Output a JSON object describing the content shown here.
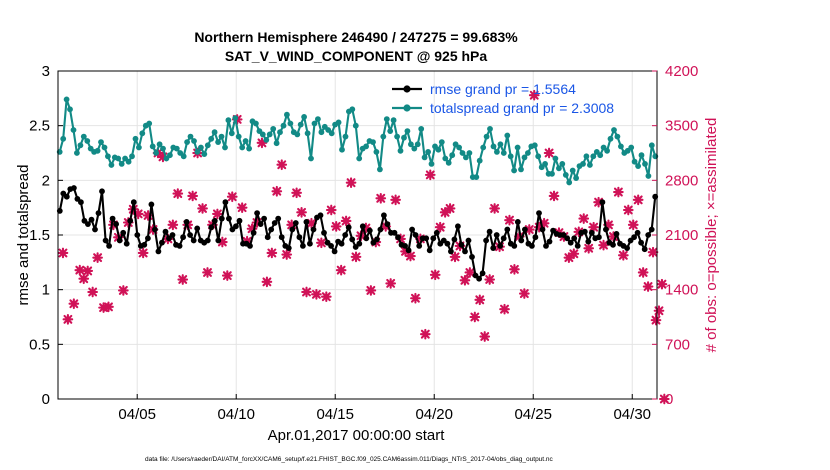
{
  "chart_data": {
    "type": "line",
    "title": "Northern Hemisphere 246490 / 247275 = 99.683%",
    "subtitle": "SAT_V_WIND_COMPONENT @ 925 hPa",
    "xlabel": "Apr.01,2017 00:00:00 start",
    "ylabel_left": "rmse and totalspread",
    "ylabel_right": "# of obs: o=possible; ×=assimilated",
    "footer": "data file: /Users/raeder/DAI/ATM_forcXX/CAM6_setup/f.e21.FHIST_BGC.f09_025.CAM6assim.011/Diags_NTrS_2017-04/obs_diag_output.nc",
    "x_range_days": [
      0,
      30.25
    ],
    "x_ticks": [
      {
        "day": 4,
        "label": "04/05"
      },
      {
        "day": 9,
        "label": "04/10"
      },
      {
        "day": 14,
        "label": "04/15"
      },
      {
        "day": 19,
        "label": "04/20"
      },
      {
        "day": 24,
        "label": "04/25"
      },
      {
        "day": 29,
        "label": "04/30"
      }
    ],
    "ylim_left": [
      0,
      3
    ],
    "left_ticks": [
      "0",
      "0.5",
      "1",
      "1.5",
      "2",
      "2.5",
      "3"
    ],
    "ylim_right": [
      0,
      4200
    ],
    "right_ticks": [
      "0",
      "700",
      "1400",
      "2100",
      "2800",
      "3500",
      "4200"
    ],
    "grid": true,
    "legend_position": "top-right",
    "series": [
      {
        "name": "rmse grand pr = 1.5564",
        "axis": "left",
        "color": "#000000",
        "values": [
          1.72,
          1.88,
          1.85,
          1.92,
          1.93,
          1.83,
          1.8,
          1.63,
          1.6,
          1.64,
          1.55,
          1.7,
          1.9,
          1.45,
          1.4,
          1.65,
          1.6,
          1.45,
          1.52,
          1.42,
          1.63,
          1.8,
          1.5,
          1.4,
          1.41,
          1.47,
          1.78,
          1.55,
          1.35,
          1.43,
          1.53,
          1.47,
          1.5,
          1.41,
          1.4,
          1.48,
          1.62,
          1.5,
          1.45,
          1.56,
          1.45,
          1.43,
          1.45,
          1.57,
          1.63,
          1.45,
          1.65,
          1.8,
          1.65,
          1.55,
          1.58,
          1.63,
          1.42,
          1.42,
          1.4,
          1.52,
          1.7,
          1.6,
          1.65,
          1.48,
          1.55,
          1.61,
          1.65,
          1.48,
          1.4,
          1.38,
          1.55,
          1.61,
          1.48,
          1.4,
          1.62,
          1.42,
          1.55,
          1.66,
          1.68,
          1.52,
          1.43,
          1.4,
          1.35,
          1.44,
          1.42,
          1.5,
          1.57,
          1.46,
          1.39,
          1.42,
          1.58,
          1.47,
          1.54,
          1.43,
          1.46,
          1.55,
          1.68,
          1.6,
          1.52,
          1.52,
          1.48,
          1.41,
          1.4,
          1.36,
          1.55,
          1.5,
          1.4,
          1.47,
          1.47,
          1.36,
          1.47,
          1.52,
          1.42,
          1.45,
          1.42,
          1.35,
          1.46,
          1.58,
          1.41,
          1.35,
          1.45,
          1.3,
          1.13,
          1.1,
          1.15,
          1.45,
          1.53,
          1.38,
          1.5,
          1.4,
          1.47,
          1.55,
          1.42,
          1.4,
          1.62,
          1.45,
          1.55,
          1.42,
          1.4,
          1.48,
          1.7,
          1.55,
          1.4,
          1.44,
          1.54,
          1.51,
          1.5,
          1.5,
          1.47,
          1.43,
          1.47,
          1.4,
          1.52,
          1.53,
          1.44,
          1.52,
          1.47,
          1.48,
          1.8,
          1.55,
          1.43,
          1.41,
          1.51,
          1.42,
          1.4,
          1.38,
          1.45,
          1.48,
          1.52,
          1.43,
          1.37,
          1.5,
          1.55,
          1.85
        ]
      },
      {
        "name": "totalspread grand pr = 2.3008",
        "axis": "left",
        "color": "#128a86",
        "values": [
          2.26,
          2.38,
          2.74,
          2.65,
          2.46,
          2.25,
          2.32,
          2.4,
          2.36,
          2.29,
          2.26,
          2.27,
          2.35,
          2.3,
          2.22,
          2.14,
          2.21,
          2.2,
          2.15,
          2.2,
          2.17,
          2.22,
          2.38,
          2.3,
          2.43,
          2.5,
          2.52,
          2.31,
          2.25,
          2.33,
          2.29,
          2.2,
          2.23,
          2.3,
          2.29,
          2.25,
          2.22,
          2.35,
          2.4,
          2.36,
          2.26,
          2.3,
          2.24,
          2.32,
          2.38,
          2.44,
          2.35,
          2.4,
          2.3,
          2.55,
          2.43,
          2.57,
          2.4,
          2.3,
          2.36,
          2.29,
          2.54,
          2.52,
          2.45,
          2.42,
          2.37,
          2.42,
          2.47,
          2.34,
          2.44,
          2.5,
          2.6,
          2.52,
          2.44,
          2.42,
          2.51,
          2.58,
          2.43,
          2.2,
          2.52,
          2.56,
          2.44,
          2.49,
          2.46,
          2.43,
          2.51,
          2.53,
          2.28,
          2.4,
          2.63,
          2.65,
          2.5,
          2.2,
          2.29,
          2.31,
          2.36,
          2.35,
          2.26,
          2.1,
          2.4,
          2.56,
          2.45,
          2.55,
          2.4,
          2.27,
          2.39,
          2.45,
          2.33,
          2.29,
          2.33,
          2.47,
          2.21,
          2.26,
          2.15,
          2.31,
          2.28,
          2.35,
          2.2,
          2.16,
          2.23,
          2.33,
          2.3,
          2.25,
          2.21,
          2.25,
          2.03,
          2.03,
          2.18,
          2.3,
          2.4,
          2.47,
          2.31,
          2.26,
          2.33,
          2.25,
          2.41,
          2.22,
          2.09,
          2.3,
          2.1,
          2.21,
          2.25,
          2.31,
          2.32,
          2.22,
          2.12,
          2.15,
          2.06,
          2.06,
          2.2,
          2.11,
          2.15,
          2.05,
          1.98,
          2.09,
          2.02,
          2.13,
          2.15,
          2.22,
          2.14,
          2.22,
          2.26,
          2.23,
          2.3,
          2.27,
          2.38,
          2.46,
          2.4,
          2.31,
          2.25,
          2.27,
          2.3,
          2.17,
          2.13,
          2.23,
          2.15,
          2.04,
          2.32,
          2.22
        ]
      }
    ],
    "obs_possible_assimilated": {
      "name": "# of obs assimilated",
      "axis": "right",
      "color": "#d01257",
      "points": [
        [
          0.25,
          1870
        ],
        [
          0.5,
          1020
        ],
        [
          0.8,
          1220
        ],
        [
          1.1,
          1650
        ],
        [
          1.3,
          1540
        ],
        [
          1.5,
          1640
        ],
        [
          1.75,
          1370
        ],
        [
          2.0,
          1810
        ],
        [
          2.3,
          1170
        ],
        [
          2.55,
          1180
        ],
        [
          2.8,
          2230
        ],
        [
          3.05,
          2070
        ],
        [
          3.3,
          1390
        ],
        [
          3.55,
          2260
        ],
        [
          3.8,
          2430
        ],
        [
          4.05,
          2370
        ],
        [
          4.3,
          1870
        ],
        [
          4.55,
          2350
        ],
        [
          4.8,
          2170
        ],
        [
          5.05,
          3150
        ],
        [
          5.3,
          3100
        ],
        [
          5.55,
          2050
        ],
        [
          5.8,
          2230
        ],
        [
          6.05,
          2630
        ],
        [
          6.3,
          1530
        ],
        [
          6.55,
          2230
        ],
        [
          6.8,
          2600
        ],
        [
          7.05,
          3150
        ],
        [
          7.3,
          2440
        ],
        [
          7.55,
          1620
        ],
        [
          7.8,
          2230
        ],
        [
          8.05,
          2370
        ],
        [
          8.3,
          2010
        ],
        [
          8.55,
          1580
        ],
        [
          8.8,
          2590
        ],
        [
          9.05,
          3580
        ],
        [
          9.3,
          2450
        ],
        [
          9.55,
          2020
        ],
        [
          9.8,
          2180
        ],
        [
          10.05,
          2260
        ],
        [
          10.3,
          3280
        ],
        [
          10.55,
          1500
        ],
        [
          10.8,
          1870
        ],
        [
          11.05,
          2660
        ],
        [
          11.3,
          3000
        ],
        [
          11.55,
          1850
        ],
        [
          11.8,
          2230
        ],
        [
          12.05,
          2640
        ],
        [
          12.3,
          2390
        ],
        [
          12.55,
          1370
        ],
        [
          12.8,
          2250
        ],
        [
          13.05,
          1340
        ],
        [
          13.3,
          2000
        ],
        [
          13.55,
          1310
        ],
        [
          13.8,
          2420
        ],
        [
          14.05,
          2210
        ],
        [
          14.3,
          1650
        ],
        [
          14.55,
          2280
        ],
        [
          14.8,
          2770
        ],
        [
          15.05,
          1820
        ],
        [
          15.3,
          2090
        ],
        [
          15.55,
          2190
        ],
        [
          15.8,
          1390
        ],
        [
          16.05,
          2010
        ],
        [
          16.3,
          2570
        ],
        [
          16.55,
          2210
        ],
        [
          16.8,
          1480
        ],
        [
          17.05,
          2550
        ],
        [
          17.3,
          2050
        ],
        [
          17.55,
          1890
        ],
        [
          17.8,
          1830
        ],
        [
          18.05,
          1290
        ],
        [
          18.3,
          2050
        ],
        [
          18.55,
          830
        ],
        [
          18.8,
          2870
        ],
        [
          19.05,
          1590
        ],
        [
          19.3,
          2200
        ],
        [
          19.55,
          2390
        ],
        [
          19.8,
          2440
        ],
        [
          20.05,
          1820
        ],
        [
          20.3,
          1960
        ],
        [
          20.55,
          1520
        ],
        [
          20.8,
          1620
        ],
        [
          21.05,
          1050
        ],
        [
          21.3,
          1270
        ],
        [
          21.55,
          800
        ],
        [
          21.8,
          1530
        ],
        [
          22.05,
          2440
        ],
        [
          22.3,
          1950
        ],
        [
          22.55,
          1150
        ],
        [
          22.8,
          2290
        ],
        [
          23.05,
          1660
        ],
        [
          23.3,
          2080
        ],
        [
          23.55,
          1350
        ],
        [
          23.8,
          2170
        ],
        [
          24.05,
          3890
        ],
        [
          24.3,
          2200
        ],
        [
          24.55,
          2250
        ],
        [
          24.8,
          3150
        ],
        [
          25.05,
          2600
        ],
        [
          25.3,
          2130
        ],
        [
          25.55,
          2080
        ],
        [
          25.8,
          1810
        ],
        [
          26.05,
          1860
        ],
        [
          26.3,
          2140
        ],
        [
          26.55,
          2310
        ],
        [
          26.8,
          1930
        ],
        [
          27.05,
          2200
        ],
        [
          27.3,
          2520
        ],
        [
          27.55,
          1970
        ],
        [
          27.8,
          2230
        ],
        [
          28.05,
          2080
        ],
        [
          28.3,
          2650
        ],
        [
          28.55,
          1840
        ],
        [
          28.8,
          2420
        ],
        [
          29.05,
          2230
        ],
        [
          29.3,
          2550
        ],
        [
          29.55,
          1620
        ],
        [
          29.8,
          1440
        ],
        [
          30.05,
          1880
        ],
        [
          30.2,
          1010
        ],
        [
          30.35,
          1130
        ],
        [
          30.5,
          1470
        ],
        [
          30.62,
          0
        ]
      ]
    }
  }
}
